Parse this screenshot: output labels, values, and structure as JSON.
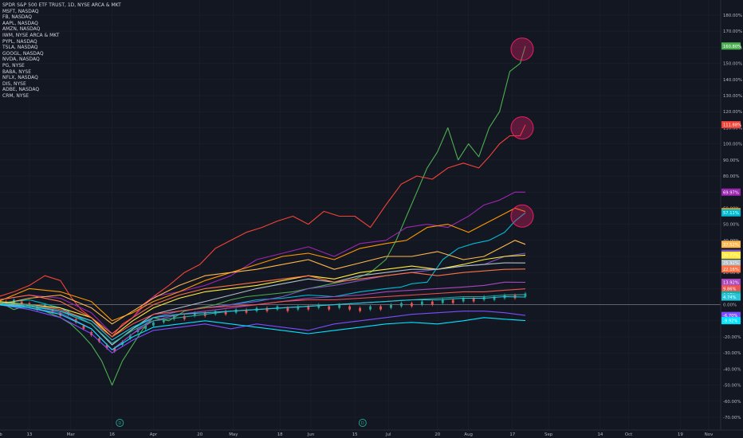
{
  "legend": [
    "SPDR S&P 500 ETF TRUST, 1D, NYSE ARCA & MKT",
    "MSFT, NASDAQ",
    "FB, NASDAQ",
    "AAPL, NASDAQ",
    "AMZN, NASDAQ",
    "IWM, NYSE ARCA & MKT",
    "PYPL, NASDAQ",
    "TSLA, NASDAQ",
    "GOOGL, NASDAQ",
    "NVDA, NASDAQ",
    "PG, NYSE",
    "BABA, NYSE",
    "NFLX, NASDAQ",
    "DIS, NYSE",
    "ADBE, NASDAQ",
    "CRM, NYSE"
  ],
  "chart_data": {
    "type": "line",
    "y_unit": "%",
    "ylim": [
      -70,
      185
    ],
    "y_ticks": [
      "180.00%",
      "170.00%",
      "160.00%",
      "150.00%",
      "140.00%",
      "130.00%",
      "120.00%",
      "110.00%",
      "100.00%",
      "90.00%",
      "80.00%",
      "70.00%",
      "60.00%",
      "50.00%",
      "40.00%",
      "30.00%",
      "20.00%",
      "10.00%",
      "0.00%",
      "-10.00%",
      "-20.00%",
      "-30.00%",
      "-40.00%",
      "-50.00%",
      "-60.00%",
      "-70.00%"
    ],
    "x_ticks": [
      "Feb",
      "13",
      "Mar",
      "16",
      "Apr",
      "20",
      "May",
      "18",
      "Jun",
      "15",
      "Jul",
      "20",
      "Aug",
      "17",
      "Sep",
      "14",
      "Oct",
      "19",
      "Nov"
    ],
    "x_tick_days": [
      0,
      12,
      28,
      44,
      60,
      78,
      91,
      109,
      121,
      138,
      151,
      170,
      182,
      199,
      213,
      233,
      244,
      264,
      275
    ],
    "x_range_days": [
      0,
      277
    ],
    "x_last_day": 204,
    "dividend_markers": {
      "label": "D",
      "days": [
        47,
        141
      ]
    },
    "zero_line": 0,
    "series": [
      {
        "color": "#4caf50",
        "last_label": "160.80%",
        "last": 160.8,
        "x": [
          0,
          6,
          12,
          18,
          24,
          28,
          32,
          36,
          40,
          44,
          48,
          52,
          56,
          60,
          66,
          72,
          78,
          84,
          90,
          96,
          102,
          108,
          114,
          120,
          126,
          132,
          138,
          144,
          150,
          154,
          158,
          162,
          166,
          170,
          174,
          178,
          182,
          186,
          190,
          194,
          198,
          202,
          204
        ],
        "y": [
          2,
          -3,
          0,
          -4,
          -8,
          -12,
          -18,
          -25,
          -35,
          -50,
          -35,
          -25,
          -15,
          -8,
          -10,
          -4,
          -2,
          0,
          3,
          5,
          6,
          7,
          8,
          10,
          12,
          14,
          16,
          20,
          28,
          40,
          55,
          70,
          85,
          95,
          110,
          90,
          100,
          92,
          110,
          120,
          145,
          150,
          160.8
        ]
      },
      {
        "color": "#f44336",
        "last_label": "111.88%",
        "last": 111.88,
        "x": [
          0,
          6,
          12,
          18,
          24,
          28,
          32,
          36,
          40,
          44,
          48,
          52,
          56,
          60,
          66,
          72,
          78,
          84,
          90,
          96,
          102,
          108,
          114,
          120,
          126,
          132,
          138,
          144,
          150,
          156,
          162,
          168,
          174,
          180,
          186,
          190,
          194,
          198,
          202,
          204
        ],
        "y": [
          5,
          8,
          12,
          18,
          15,
          5,
          -3,
          -8,
          -15,
          -20,
          -12,
          -8,
          0,
          5,
          12,
          20,
          25,
          35,
          40,
          45,
          48,
          52,
          55,
          50,
          58,
          55,
          55,
          48,
          62,
          75,
          80,
          78,
          85,
          88,
          85,
          92,
          100,
          105,
          105,
          111.88
        ]
      },
      {
        "color": "#9c27b0",
        "last_label": "69.97%",
        "last": 69.97,
        "x": [
          0,
          12,
          24,
          36,
          44,
          52,
          60,
          70,
          80,
          90,
          100,
          110,
          120,
          130,
          140,
          150,
          158,
          166,
          174,
          182,
          188,
          194,
          200,
          204
        ],
        "y": [
          3,
          6,
          4,
          -5,
          -18,
          -8,
          5,
          8,
          12,
          18,
          28,
          32,
          36,
          30,
          38,
          40,
          48,
          50,
          48,
          55,
          62,
          65,
          70,
          69.97
        ]
      },
      {
        "color": "#ff9800",
        "last_label": "57.89%",
        "last": 57.89,
        "x": [
          0,
          12,
          24,
          36,
          44,
          52,
          60,
          70,
          80,
          90,
          100,
          110,
          120,
          130,
          140,
          150,
          158,
          166,
          174,
          182,
          188,
          194,
          200,
          204
        ],
        "y": [
          2,
          10,
          8,
          2,
          -10,
          -5,
          2,
          8,
          15,
          20,
          25,
          30,
          32,
          28,
          35,
          38,
          40,
          48,
          50,
          45,
          50,
          55,
          60,
          57.89
        ]
      },
      {
        "color": "#00bcd4",
        "last_label": "57.11%",
        "last": 57.11,
        "x": [
          0,
          12,
          24,
          36,
          44,
          52,
          60,
          70,
          80,
          90,
          100,
          110,
          120,
          130,
          140,
          150,
          156,
          160,
          166,
          172,
          178,
          184,
          190,
          196,
          200,
          204
        ],
        "y": [
          1,
          3,
          -2,
          -12,
          -25,
          -15,
          -8,
          -4,
          -2,
          0,
          3,
          4,
          6,
          5,
          8,
          10,
          11,
          13,
          14,
          28,
          35,
          38,
          40,
          45,
          52,
          57.11
        ]
      },
      {
        "color": "#ffb74d",
        "last_label": "37.52%",
        "last": 37.52,
        "x": [
          0,
          12,
          24,
          36,
          44,
          52,
          60,
          70,
          80,
          90,
          100,
          110,
          120,
          130,
          140,
          150,
          160,
          170,
          180,
          188,
          194,
          200,
          204
        ],
        "y": [
          0,
          4,
          6,
          -2,
          -12,
          -4,
          4,
          12,
          18,
          20,
          22,
          25,
          28,
          22,
          26,
          30,
          30,
          33,
          28,
          30,
          35,
          40,
          37.52
        ]
      },
      {
        "color": "#7e57c2",
        "last_label": "",
        "last": 32,
        "x": [
          0,
          12,
          24,
          36,
          44,
          52,
          60,
          70,
          80,
          90,
          100,
          110,
          120,
          130,
          140,
          150,
          160,
          170,
          180,
          188,
          196,
          204
        ],
        "y": [
          0,
          -2,
          -5,
          -15,
          -28,
          -18,
          -8,
          -4,
          -2,
          0,
          2,
          5,
          10,
          12,
          15,
          18,
          20,
          22,
          24,
          25,
          30,
          32
        ]
      },
      {
        "color": "#ffeb3b",
        "last_label": "30.77%",
        "last": 30.77,
        "x": [
          0,
          12,
          24,
          36,
          44,
          52,
          60,
          70,
          80,
          90,
          100,
          110,
          120,
          130,
          140,
          150,
          160,
          170,
          180,
          188,
          196,
          204
        ],
        "y": [
          2,
          0,
          -2,
          -8,
          -20,
          -10,
          -2,
          4,
          8,
          10,
          12,
          15,
          18,
          16,
          20,
          22,
          24,
          22,
          25,
          28,
          30,
          30.77
        ]
      },
      {
        "color": "#b0bec5",
        "last_label": "25.92%",
        "last": 25.92,
        "x": [
          0,
          12,
          24,
          36,
          44,
          52,
          60,
          70,
          80,
          90,
          100,
          110,
          120,
          130,
          140,
          150,
          160,
          170,
          180,
          188,
          196,
          204
        ],
        "y": [
          1,
          -1,
          -4,
          -12,
          -25,
          -15,
          -6,
          -2,
          2,
          6,
          10,
          13,
          16,
          14,
          18,
          20,
          22,
          22,
          24,
          25,
          26,
          25.92
        ]
      },
      {
        "color": "#ff7043",
        "last_label": "22.16%",
        "last": 22.16,
        "x": [
          0,
          12,
          24,
          36,
          44,
          52,
          60,
          70,
          80,
          90,
          100,
          110,
          120,
          130,
          140,
          150,
          160,
          170,
          180,
          188,
          196,
          204
        ],
        "y": [
          3,
          6,
          2,
          -8,
          -18,
          -8,
          0,
          6,
          10,
          12,
          14,
          16,
          18,
          14,
          16,
          18,
          20,
          18,
          20,
          21,
          22,
          22.16
        ]
      },
      {
        "color": "#ab47bc",
        "last_label": "13.92%",
        "last": 13.92,
        "x": [
          0,
          12,
          24,
          36,
          44,
          52,
          60,
          70,
          80,
          90,
          100,
          110,
          120,
          130,
          140,
          150,
          160,
          170,
          180,
          188,
          196,
          204
        ],
        "y": [
          0,
          -2,
          -6,
          -15,
          -28,
          -18,
          -10,
          -6,
          -4,
          -2,
          0,
          2,
          4,
          5,
          6,
          8,
          9,
          10,
          11,
          12,
          14,
          13.92
        ]
      },
      {
        "color": "#ef5350",
        "last_label": "9.86%",
        "last": 9.86,
        "x": [
          0,
          12,
          24,
          36,
          44,
          52,
          60,
          70,
          80,
          90,
          100,
          110,
          120,
          130,
          140,
          150,
          160,
          170,
          180,
          188,
          196,
          204
        ],
        "y": [
          1,
          0,
          -3,
          -10,
          -20,
          -12,
          -6,
          -4,
          -2,
          -1,
          0,
          2,
          3,
          3,
          4,
          5,
          6,
          7,
          8,
          8,
          9,
          9.86
        ]
      },
      {
        "color": "#26a69a",
        "last_label": "6.27%",
        "last": 6.27,
        "x": [
          0,
          12,
          24,
          36,
          44,
          52,
          60,
          70,
          80,
          90,
          100,
          110,
          120,
          130,
          140,
          150,
          160,
          170,
          180,
          188,
          196,
          204
        ],
        "y": [
          1,
          0,
          -4,
          -12,
          -24,
          -16,
          -10,
          -8,
          -6,
          -4,
          -3,
          -2,
          -1,
          0,
          1,
          2,
          3,
          4,
          5,
          5,
          6,
          6.27
        ]
      },
      {
        "color": "#26c6da",
        "last_label": "4.74%",
        "last": 4.74,
        "x": [
          0,
          12,
          24,
          36,
          44,
          52,
          60,
          70,
          80,
          90,
          100,
          110,
          120,
          130,
          140,
          150,
          160,
          170,
          180,
          188,
          196,
          204
        ],
        "y": [
          0,
          -1,
          -4,
          -10,
          -22,
          -14,
          -8,
          -6,
          -5,
          -4,
          -3,
          -2,
          -1,
          0,
          1,
          2,
          3,
          3,
          4,
          4,
          5,
          4.74
        ]
      },
      {
        "color": "#7c4dff",
        "last_label": "-6.70%",
        "last": -6.7,
        "x": [
          0,
          12,
          24,
          36,
          44,
          52,
          60,
          70,
          80,
          90,
          100,
          110,
          120,
          130,
          140,
          150,
          160,
          170,
          180,
          188,
          196,
          204
        ],
        "y": [
          0,
          -3,
          -8,
          -18,
          -30,
          -22,
          -16,
          -14,
          -12,
          -15,
          -12,
          -14,
          -16,
          -12,
          -10,
          -8,
          -6,
          -5,
          -4,
          -4,
          -5,
          -6.7
        ]
      },
      {
        "color": "#00e5ff",
        "last_label": "-9.92%",
        "last": -9.92,
        "x": [
          0,
          12,
          24,
          36,
          44,
          52,
          60,
          70,
          80,
          90,
          100,
          110,
          120,
          130,
          140,
          150,
          160,
          170,
          180,
          188,
          196,
          204
        ],
        "y": [
          0,
          -2,
          -6,
          -15,
          -28,
          -20,
          -14,
          -12,
          -10,
          -12,
          -14,
          -16,
          -18,
          -16,
          -14,
          -12,
          -11,
          -12,
          -10,
          -8,
          -9,
          -9.92
        ]
      }
    ],
    "candles": {
      "up_color": "#26a69a",
      "down_color": "#ef5350",
      "x": [
        0,
        3,
        6,
        9,
        12,
        15,
        18,
        21,
        24,
        27,
        30,
        33,
        36,
        39,
        42,
        45,
        48,
        51,
        54,
        57,
        60,
        64,
        68,
        72,
        76,
        80,
        84,
        88,
        92,
        96,
        100,
        104,
        108,
        112,
        116,
        120,
        124,
        128,
        132,
        136,
        140,
        144,
        148,
        152,
        156,
        160,
        164,
        168,
        172,
        176,
        180,
        184,
        188,
        192,
        196,
        200,
        204
      ],
      "y": [
        1,
        1,
        2,
        1,
        0,
        -2,
        -1,
        -4,
        -6,
        -5,
        -10,
        -14,
        -18,
        -22,
        -26,
        -28,
        -24,
        -20,
        -16,
        -14,
        -12,
        -10,
        -8,
        -8,
        -6,
        -6,
        -5,
        -5,
        -4,
        -4,
        -3,
        -3,
        -2,
        -3,
        -2,
        -2,
        -1,
        -2,
        -1,
        -2,
        -3,
        -2,
        -2,
        -1,
        0,
        0,
        1,
        1,
        2,
        2,
        3,
        3,
        4,
        4,
        5,
        5,
        6
      ],
      "up": [
        true,
        false,
        true,
        false,
        false,
        false,
        true,
        false,
        false,
        true,
        false,
        false,
        false,
        false,
        false,
        false,
        true,
        true,
        true,
        true,
        true,
        true,
        true,
        false,
        true,
        false,
        true,
        false,
        true,
        false,
        true,
        false,
        true,
        false,
        true,
        false,
        true,
        false,
        true,
        false,
        false,
        true,
        false,
        true,
        true,
        false,
        true,
        false,
        true,
        false,
        true,
        false,
        true,
        true,
        true,
        false,
        true
      ]
    }
  }
}
